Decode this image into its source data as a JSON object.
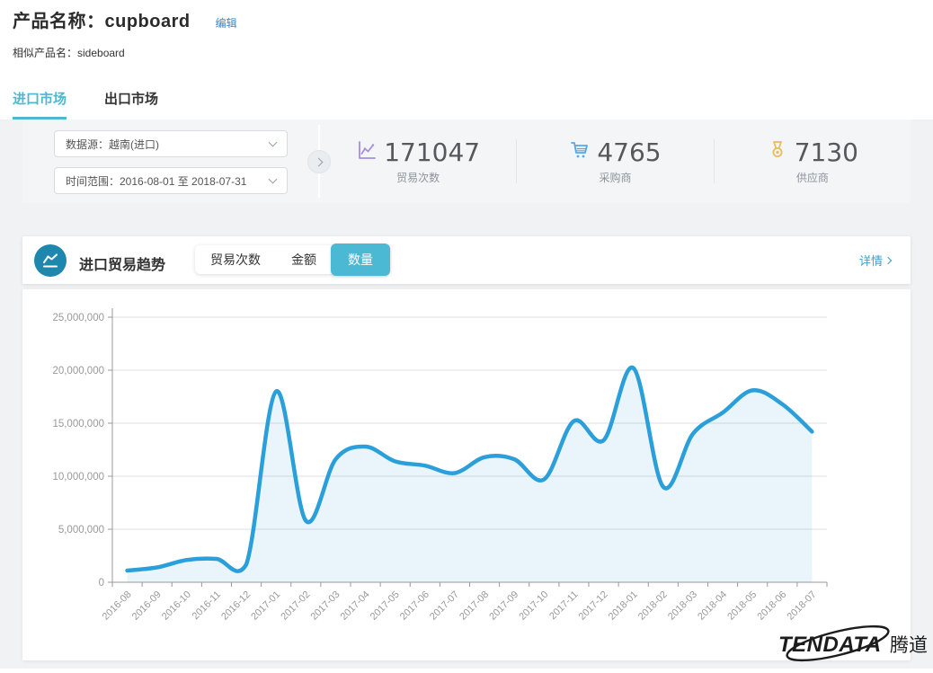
{
  "header": {
    "title": "产品名称：cupboard",
    "edit_label": "编辑",
    "similar": "相似产品名：sideboard"
  },
  "tabs": [
    {
      "label": "进口市场",
      "active": true
    },
    {
      "label": "出口市场",
      "active": false
    }
  ],
  "filters": {
    "data_source": "数据源：越南(进口)",
    "time_range": "时间范围：2016-08-01 至 2018-07-31"
  },
  "stats": [
    {
      "icon": "line-chart-icon",
      "value": "171047",
      "label": "贸易次数",
      "color": "#a78de0"
    },
    {
      "icon": "cart-icon",
      "value": "4765",
      "label": "采购商",
      "color": "#55a8e9"
    },
    {
      "icon": "medal-icon",
      "value": "7130",
      "label": "供应商",
      "color": "#e7bd5e"
    }
  ],
  "trend_card": {
    "title": "进口贸易趋势",
    "toggles": [
      {
        "label": "贸易次数",
        "active": false
      },
      {
        "label": "金额",
        "active": false
      },
      {
        "label": "数量",
        "active": true
      }
    ],
    "details_label": "详情"
  },
  "chart_data": {
    "type": "area",
    "title": "进口贸易趋势 - 数量",
    "categories": [
      "2016-08",
      "2016-09",
      "2016-10",
      "2016-11",
      "2016-12",
      "2017-01",
      "2017-02",
      "2017-03",
      "2017-04",
      "2017-05",
      "2017-06",
      "2017-07",
      "2017-08",
      "2017-09",
      "2017-10",
      "2017-11",
      "2017-12",
      "2018-01",
      "2018-02",
      "2018-03",
      "2018-04",
      "2018-05",
      "2018-06",
      "2018-07"
    ],
    "values": [
      1100000,
      1400000,
      2100000,
      2200000,
      1700000,
      18000000,
      5800000,
      11600000,
      12800000,
      11400000,
      11000000,
      10300000,
      11800000,
      11600000,
      9700000,
      15200000,
      13400000,
      20200000,
      9000000,
      14000000,
      16000000,
      18100000,
      16800000,
      14200000
    ],
    "ylim": [
      0,
      25000000
    ],
    "y_step": 5000000,
    "xlabel": "",
    "ylabel": "",
    "x_label_rotation": -45,
    "grid": true,
    "legend": "none",
    "line_color": "#2b9fd9",
    "fill_color": "rgba(43,159,217,0.10)"
  },
  "logo": {
    "text": "TENDATA",
    "suffix": "腾道"
  },
  "colors": {
    "accent_teal": "#4bb8d2",
    "toggle_active": "#4cb9d4",
    "header_icon_bg": "#1e87ae",
    "link_blue": "#3e84c7",
    "details_link": "#3ea0c6",
    "axis_text": "#999999",
    "gridline": "#dcdfe3"
  }
}
